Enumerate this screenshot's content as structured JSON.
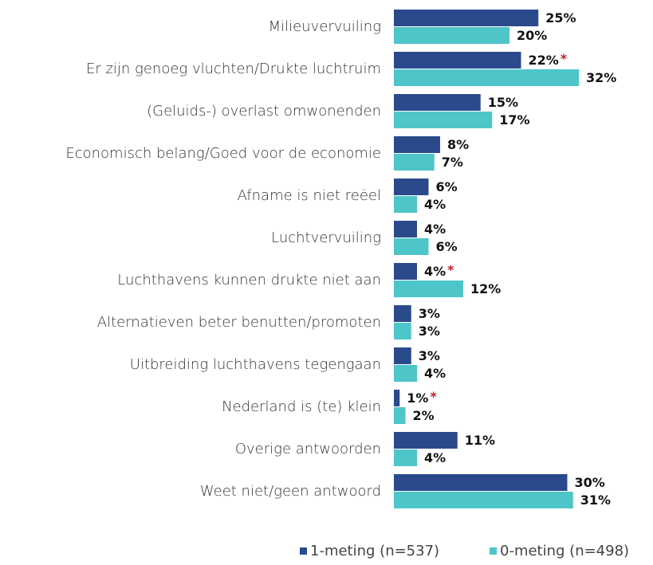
{
  "chart_data": {
    "type": "bar",
    "orientation": "horizontal",
    "categories": [
      "Milieuvervuiling",
      "Er zijn genoeg vluchten/Drukte luchtruim",
      "(Geluids-) overlast omwonenden",
      "Economisch belang/Goed voor de economie",
      "Afname is niet reëel",
      "Luchtvervuiling",
      "Luchthavens kunnen drukte niet aan",
      "Alternatieven beter benutten/promoten",
      "Uitbreiding luchthavens tegengaan",
      "Nederland is (te) klein",
      "Overige antwoorden",
      "Weet niet/geen antwoord"
    ],
    "series": [
      {
        "name": "1-meting (n=537)",
        "color": "#2b4a8c",
        "values": [
          25,
          22,
          15,
          8,
          6,
          4,
          4,
          3,
          3,
          1,
          11,
          30
        ],
        "value_labels": [
          "25%",
          "22%",
          "15%",
          "8%",
          "6%",
          "4%",
          "4%",
          "3%",
          "3%",
          "1%",
          "11%",
          "30%"
        ],
        "significance": [
          null,
          "*",
          null,
          null,
          null,
          null,
          "*",
          null,
          null,
          "*",
          null,
          null
        ]
      },
      {
        "name": "0-meting (n=498)",
        "color": "#4ec5c9",
        "values": [
          20,
          32,
          17,
          7,
          4,
          6,
          12,
          3,
          4,
          2,
          4,
          31
        ],
        "value_labels": [
          "20%",
          "32%",
          "17%",
          "7%",
          "4%",
          "6%",
          "12%",
          "3%",
          "4%",
          "2%",
          "4%",
          "31%"
        ]
      }
    ],
    "legend": "bottom-right"
  }
}
